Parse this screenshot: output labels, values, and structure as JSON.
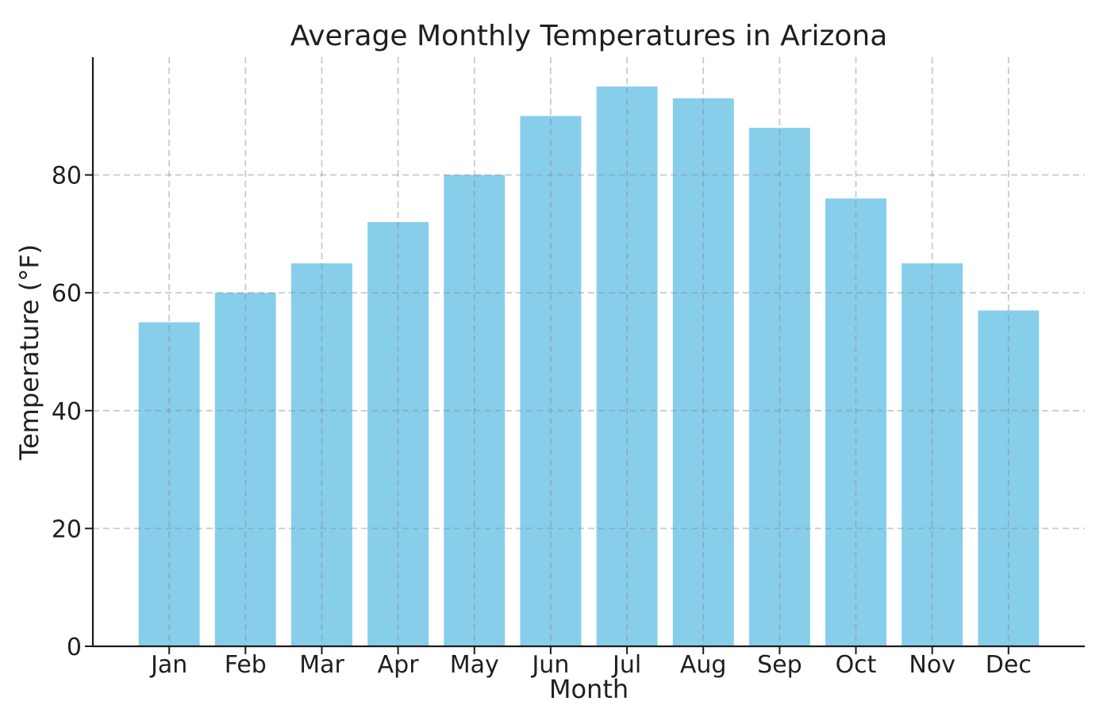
{
  "chart_data": {
    "type": "bar",
    "title": "Average Monthly Temperatures in Arizona",
    "xlabel": "Month",
    "ylabel": "Temperature (°F)",
    "categories": [
      "Jan",
      "Feb",
      "Mar",
      "Apr",
      "May",
      "Jun",
      "Jul",
      "Aug",
      "Sep",
      "Oct",
      "Nov",
      "Dec"
    ],
    "values": [
      55,
      60,
      65,
      72,
      80,
      90,
      95,
      93,
      88,
      76,
      65,
      57
    ],
    "yticks": [
      0,
      20,
      40,
      60,
      80
    ],
    "ylim": [
      0,
      100
    ],
    "bar_color": "#87CEEB",
    "grid": true,
    "grid_style": "dashed",
    "legend_position": "none",
    "background_color": "#ffffff"
  }
}
